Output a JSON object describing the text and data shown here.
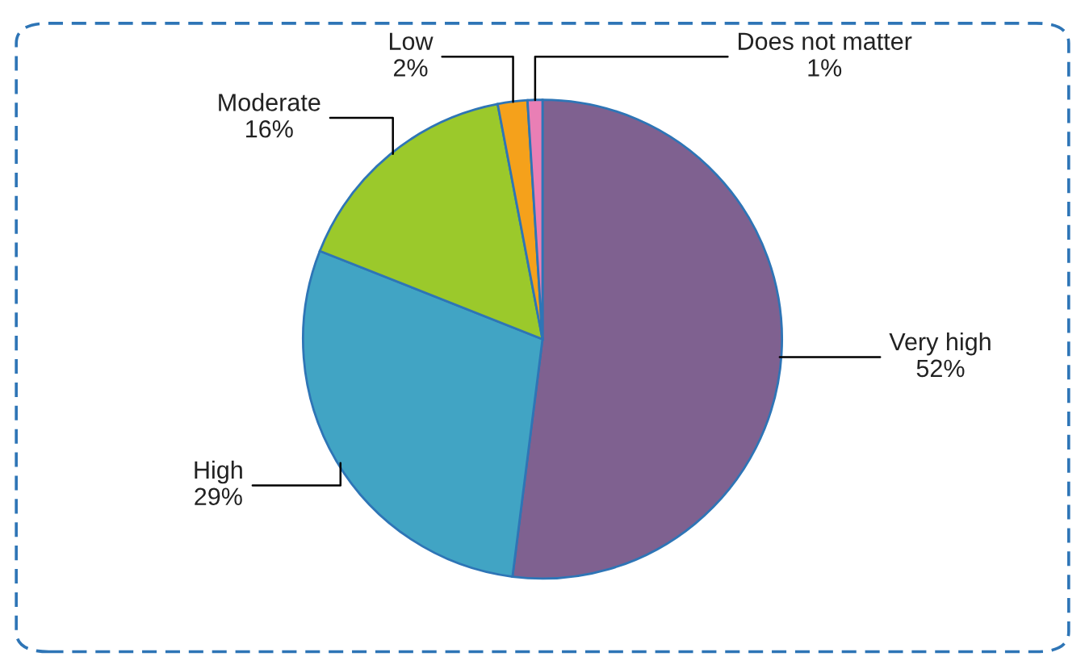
{
  "chart_data": {
    "type": "pie",
    "categories": [
      "Very high",
      "High",
      "Moderate",
      "Low",
      "Does not matter"
    ],
    "values": [
      52,
      29,
      16,
      2,
      1
    ],
    "colors": [
      "#7f6190",
      "#41a4c4",
      "#9bc92b",
      "#f5a11b",
      "#e97fb5"
    ],
    "value_labels": [
      "52%",
      "29%",
      "16%",
      "2%",
      "1%"
    ]
  }
}
